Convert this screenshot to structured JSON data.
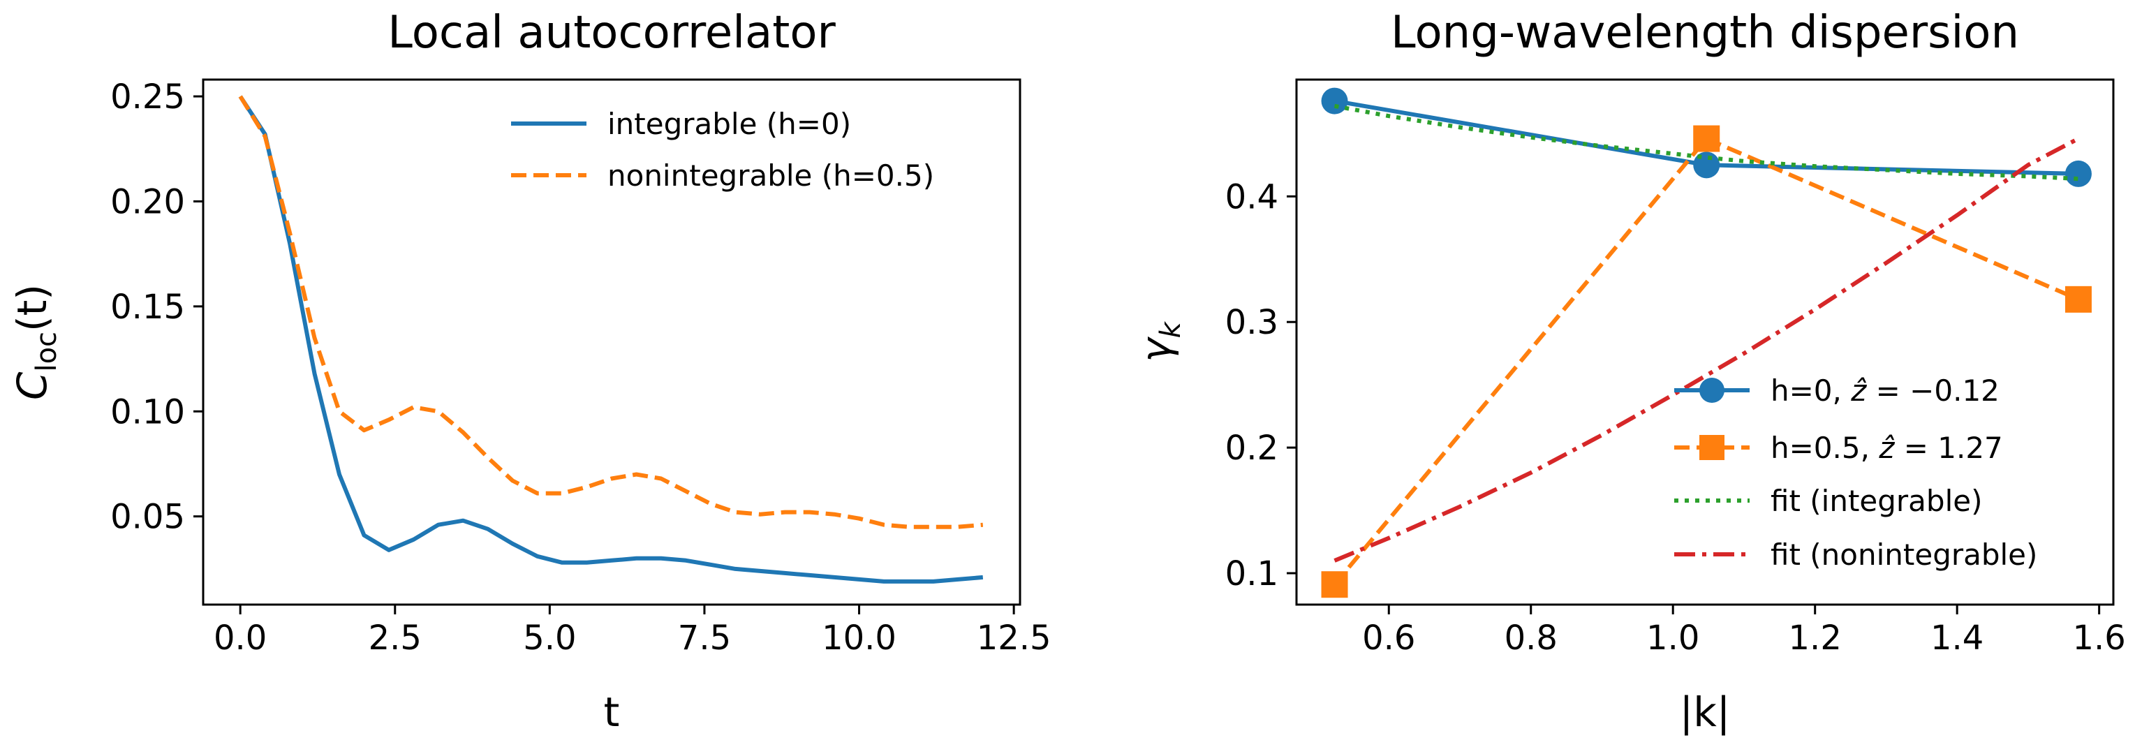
{
  "chart_data": [
    {
      "type": "line",
      "title": "Local autocorrelator",
      "xlabel": "t",
      "ylabel": "C_loc(t)",
      "ylabel_main": "C",
      "ylabel_sub": "loc",
      "ylabel_arg": "(t)",
      "xlim": [
        -0.6,
        12.6
      ],
      "ylim": [
        0.008,
        0.258
      ],
      "xticks": [
        0.0,
        2.5,
        5.0,
        7.5,
        10.0,
        12.5
      ],
      "xtick_labels": [
        "0.0",
        "2.5",
        "5.0",
        "7.5",
        "10.0",
        "12.5"
      ],
      "yticks": [
        0.05,
        0.1,
        0.15,
        0.2,
        0.25
      ],
      "ytick_labels": [
        "0.05",
        "0.10",
        "0.15",
        "0.20",
        "0.25"
      ],
      "legend_position": "upper-right",
      "series": [
        {
          "name": "integrable (h=0)",
          "color": "#1f77b4",
          "style": "solid",
          "x": [
            0,
            0.4,
            0.8,
            1.2,
            1.6,
            2.0,
            2.4,
            2.8,
            3.2,
            3.6,
            4.0,
            4.4,
            4.8,
            5.2,
            5.6,
            6.0,
            6.4,
            6.8,
            7.2,
            7.6,
            8.0,
            8.4,
            8.8,
            9.2,
            9.6,
            10.0,
            10.4,
            10.8,
            11.2,
            11.6,
            12.0
          ],
          "y": [
            0.25,
            0.232,
            0.18,
            0.118,
            0.07,
            0.041,
            0.034,
            0.039,
            0.046,
            0.048,
            0.044,
            0.037,
            0.031,
            0.028,
            0.028,
            0.029,
            0.03,
            0.03,
            0.029,
            0.027,
            0.025,
            0.024,
            0.023,
            0.022,
            0.021,
            0.02,
            0.019,
            0.019,
            0.019,
            0.02,
            0.021
          ]
        },
        {
          "name": "nonintegrable (h=0.5)",
          "color": "#ff7f0e",
          "style": "dashed",
          "x": [
            0,
            0.4,
            0.8,
            1.2,
            1.6,
            2.0,
            2.4,
            2.8,
            3.2,
            3.6,
            4.0,
            4.4,
            4.8,
            5.2,
            5.6,
            6.0,
            6.4,
            6.8,
            7.2,
            7.6,
            8.0,
            8.4,
            8.8,
            9.2,
            9.6,
            10.0,
            10.4,
            10.8,
            11.2,
            11.6,
            12.0
          ],
          "y": [
            0.25,
            0.231,
            0.185,
            0.135,
            0.1,
            0.091,
            0.096,
            0.102,
            0.1,
            0.09,
            0.078,
            0.067,
            0.061,
            0.061,
            0.064,
            0.068,
            0.07,
            0.068,
            0.062,
            0.056,
            0.052,
            0.051,
            0.052,
            0.052,
            0.051,
            0.049,
            0.046,
            0.045,
            0.045,
            0.045,
            0.046
          ]
        }
      ]
    },
    {
      "type": "line",
      "title": "Long-wavelength dispersion",
      "xlabel": "|k|",
      "ylabel": "γ_k",
      "ylabel_main": "γ",
      "ylabel_sub": "k",
      "xlim": [
        0.47,
        1.62
      ],
      "ylim": [
        0.075,
        0.493
      ],
      "xticks": [
        0.6,
        0.8,
        1.0,
        1.2,
        1.4,
        1.6
      ],
      "xtick_labels": [
        "0.6",
        "0.8",
        "1.0",
        "1.2",
        "1.4",
        "1.6"
      ],
      "yticks": [
        0.1,
        0.2,
        0.3,
        0.4
      ],
      "ytick_labels": [
        "0.1",
        "0.2",
        "0.3",
        "0.4"
      ],
      "legend_position": "lower-right",
      "series": [
        {
          "name": "h=0, ẑ = −0.12",
          "legend_parts": [
            "h=0, ",
            "ẑ",
            " = −0.12"
          ],
          "color": "#1f77b4",
          "style": "solid",
          "marker": "circle",
          "x": [
            0.5236,
            1.0472,
            1.5708
          ],
          "y": [
            0.476,
            0.425,
            0.418
          ]
        },
        {
          "name": "h=0.5, ẑ = 1.27",
          "legend_parts": [
            "h=0.5, ",
            "ẑ",
            " = 1.27"
          ],
          "color": "#ff7f0e",
          "style": "dashed",
          "marker": "square",
          "x": [
            0.5236,
            1.0472,
            1.5708
          ],
          "y": [
            0.091,
            0.446,
            0.318
          ]
        },
        {
          "name": "fit (integrable)",
          "color": "#2ca02c",
          "style": "dotted",
          "x": [
            0.5236,
            0.6,
            0.7,
            0.8,
            0.9,
            1.0,
            1.0472,
            1.1,
            1.2,
            1.3,
            1.4,
            1.5,
            1.5708
          ],
          "y": [
            0.472,
            0.464,
            0.455,
            0.447,
            0.44,
            0.434,
            0.431,
            0.428,
            0.424,
            0.421,
            0.418,
            0.416,
            0.414
          ]
        },
        {
          "name": "fit (nonintegrable)",
          "color": "#d62728",
          "style": "dashdot",
          "x": [
            0.5236,
            0.6,
            0.7,
            0.8,
            0.9,
            1.0,
            1.1,
            1.2,
            1.3,
            1.4,
            1.5,
            1.5708
          ],
          "y": [
            0.11,
            0.128,
            0.153,
            0.18,
            0.21,
            0.242,
            0.275,
            0.31,
            0.347,
            0.385,
            0.425,
            0.446
          ]
        }
      ]
    }
  ]
}
